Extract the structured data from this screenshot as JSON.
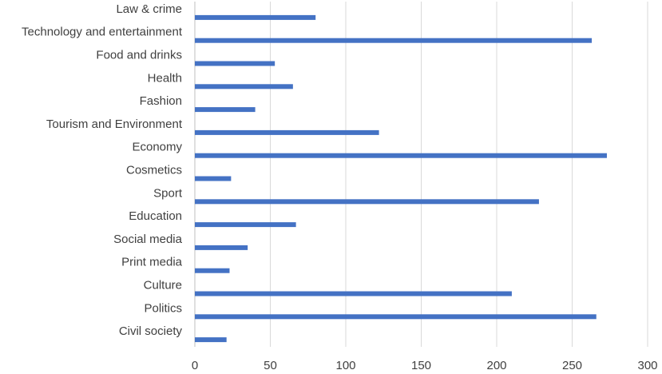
{
  "chart_data": {
    "type": "bar",
    "orientation": "horizontal",
    "title": "",
    "xlabel": "",
    "ylabel": "",
    "categories": [
      "Law & crime",
      "Technology and entertainment",
      "Food and drinks",
      "Health",
      "Fashion",
      "Tourism and Environment",
      "Economy",
      "Cosmetics",
      "Sport",
      "Education",
      "Social media",
      "Print media",
      "Culture",
      "Politics",
      "Civil society"
    ],
    "values": [
      80,
      263,
      53,
      65,
      40,
      122,
      273,
      24,
      228,
      67,
      35,
      23,
      210,
      266,
      21
    ],
    "xlim": [
      0,
      300
    ],
    "xticks": [
      "0",
      "50",
      "100",
      "150",
      "200",
      "250",
      "300"
    ],
    "grid": "vertical",
    "legend": "none",
    "bar_color": "#4472c4"
  }
}
